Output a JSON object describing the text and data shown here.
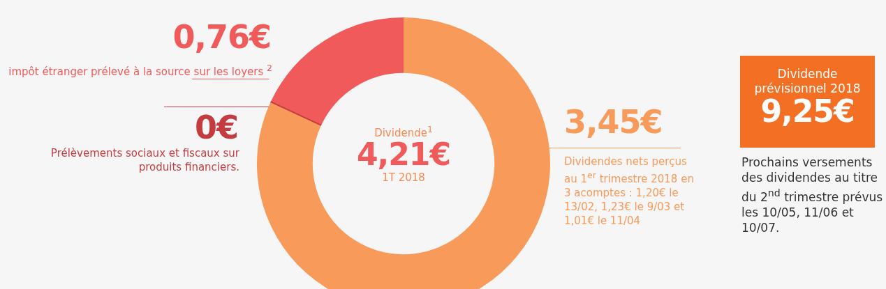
{
  "chart_data": {
    "type": "donut",
    "categories": [
      "Dividendes nets perçus au 1$^{er}$ trimestre 2018 en 3 acomptes : 1,20€ le 13/02, 1,23€ le 9/03 et 1,01€ le 11/04",
      "Prélèvements sociaux et fiscaux sur produits financiers.",
      "impôt étranger prélevé à la source sur les loyers $^{2}$"
    ],
    "values": [
      3.45,
      0,
      0.76
    ],
    "colors": [
      "#f79a5a",
      "#c43c3f",
      "#f05a5a"
    ],
    "value_labels": [
      "3,45€",
      "0€",
      "0,76€"
    ],
    "legend": false,
    "annotations": [
      "Dividende$^{1}$",
      "4,21€",
      "1T 2018",
      "Dividende prévisionnel 2018",
      "9,25€",
      "Prochains versements des dividendes au titre du 2$^{nd}$ trimestre prévus les 10/05, 11/06 et 10/07."
    ]
  }
}
